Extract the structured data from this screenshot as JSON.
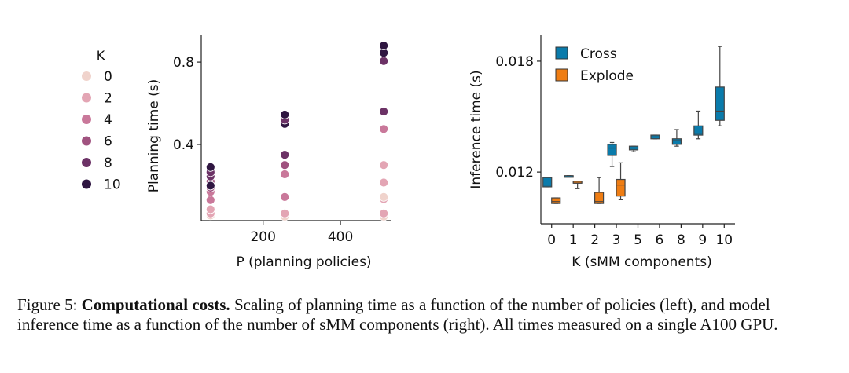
{
  "caption": {
    "label": "Figure 5:",
    "bold": "Computational costs.",
    "text": "Scaling of planning time as a function of the number of policies (left), and model inference time as a function of the number of sMM components (right). All times measured on a single A100 GPU."
  },
  "chart_data": [
    {
      "type": "scatter",
      "xlabel": "P (planning policies)",
      "ylabel": "Planning time (s)",
      "xlim": [
        40,
        530
      ],
      "ylim": [
        0.03,
        0.93
      ],
      "xticks": [
        200,
        400
      ],
      "xtick_labels": [
        "200",
        "400"
      ],
      "yticks": [
        0.4,
        0.8
      ],
      "ytick_labels": [
        "0.4",
        "0.8"
      ],
      "legend": {
        "title": "K",
        "placement": "left",
        "entries": [
          {
            "label": "0",
            "color": "#f0d3cc"
          },
          {
            "label": "2",
            "color": "#e3a5b4"
          },
          {
            "label": "4",
            "color": "#c9789a"
          },
          {
            "label": "6",
            "color": "#a0527f"
          },
          {
            "label": "8",
            "color": "#6c3266"
          },
          {
            "label": "10",
            "color": "#2f1641"
          }
        ]
      },
      "points": [
        {
          "x": 64,
          "y": 0.055,
          "k": 0
        },
        {
          "x": 64,
          "y": 0.065,
          "k": 1
        },
        {
          "x": 64,
          "y": 0.085,
          "k": 2
        },
        {
          "x": 64,
          "y": 0.13,
          "k": 3
        },
        {
          "x": 64,
          "y": 0.17,
          "k": 4
        },
        {
          "x": 64,
          "y": 0.19,
          "k": 5
        },
        {
          "x": 64,
          "y": 0.22,
          "k": 6
        },
        {
          "x": 64,
          "y": 0.245,
          "k": 7
        },
        {
          "x": 64,
          "y": 0.265,
          "k": 8
        },
        {
          "x": 64,
          "y": 0.2,
          "k": 9
        },
        {
          "x": 64,
          "y": 0.29,
          "k": 10
        },
        {
          "x": 256,
          "y": 0.05,
          "k": 0
        },
        {
          "x": 256,
          "y": 0.065,
          "k": 1
        },
        {
          "x": 256,
          "y": 0.145,
          "k": 3
        },
        {
          "x": 256,
          "y": 0.255,
          "k": 4
        },
        {
          "x": 256,
          "y": 0.3,
          "k": 5
        },
        {
          "x": 256,
          "y": 0.35,
          "k": 8
        },
        {
          "x": 256,
          "y": 0.5,
          "k": 9
        },
        {
          "x": 256,
          "y": 0.52,
          "k": 7
        },
        {
          "x": 256,
          "y": 0.545,
          "k": 10
        },
        {
          "x": 512,
          "y": 0.05,
          "k": 0
        },
        {
          "x": 512,
          "y": 0.065,
          "k": 1
        },
        {
          "x": 512,
          "y": 0.135,
          "k": 1
        },
        {
          "x": 512,
          "y": 0.145,
          "k": 0
        },
        {
          "x": 512,
          "y": 0.215,
          "k": 2
        },
        {
          "x": 512,
          "y": 0.3,
          "k": 2
        },
        {
          "x": 512,
          "y": 0.475,
          "k": 4
        },
        {
          "x": 512,
          "y": 0.56,
          "k": 8
        },
        {
          "x": 512,
          "y": 0.805,
          "k": 8
        },
        {
          "x": 512,
          "y": 0.845,
          "k": 9
        },
        {
          "x": 512,
          "y": 0.88,
          "k": 10
        }
      ]
    },
    {
      "type": "box",
      "xlabel": "K (sMM components)",
      "ylabel": "Inference time (s)",
      "ylim": [
        0.0092,
        0.0194
      ],
      "yticks": [
        0.012,
        0.018
      ],
      "ytick_labels": [
        "0.012",
        "0.018"
      ],
      "categories": [
        "0",
        "1",
        "2",
        "3",
        "5",
        "6",
        "8",
        "9",
        "10"
      ],
      "legend": {
        "placement": "top-left",
        "entries": [
          {
            "label": "Cross",
            "color": "#0a7bab"
          },
          {
            "label": "Explode",
            "color": "#ef7d13"
          }
        ]
      },
      "series": [
        {
          "name": "Cross",
          "color": "#0a7bab",
          "boxes": [
            {
              "cat": "0",
              "min": 0.0112,
              "q1": 0.0112,
              "med": 0.0113,
              "q3": 0.0117,
              "max": 0.0117
            },
            {
              "cat": "1",
              "min": 0.0118,
              "q1": 0.0118,
              "med": 0.0118,
              "q3": 0.0118,
              "max": 0.0118
            },
            {
              "cat": "3",
              "min": 0.0123,
              "q1": 0.0129,
              "med": 0.0133,
              "q3": 0.0135,
              "max": 0.0136
            },
            {
              "cat": "5",
              "min": 0.0131,
              "q1": 0.0132,
              "med": 0.0133,
              "q3": 0.0134,
              "max": 0.0134
            },
            {
              "cat": "6",
              "min": 0.0138,
              "q1": 0.0138,
              "med": 0.0139,
              "q3": 0.014,
              "max": 0.014
            },
            {
              "cat": "8",
              "min": 0.0134,
              "q1": 0.0135,
              "med": 0.0137,
              "q3": 0.0138,
              "max": 0.0143
            },
            {
              "cat": "9",
              "min": 0.0138,
              "q1": 0.014,
              "med": 0.0141,
              "q3": 0.0145,
              "max": 0.0153
            },
            {
              "cat": "10",
              "min": 0.0145,
              "q1": 0.0148,
              "med": 0.0153,
              "q3": 0.0166,
              "max": 0.0188
            }
          ]
        },
        {
          "name": "Explode",
          "color": "#ef7d13",
          "boxes": [
            {
              "cat": "0",
              "min": 0.0103,
              "q1": 0.0103,
              "med": 0.0104,
              "q3": 0.0106,
              "max": 0.0106
            },
            {
              "cat": "1",
              "min": 0.0111,
              "q1": 0.0114,
              "med": 0.0114,
              "q3": 0.0115,
              "max": 0.0115
            },
            {
              "cat": "2",
              "min": 0.0103,
              "q1": 0.0103,
              "med": 0.0104,
              "q3": 0.0109,
              "max": 0.0117
            },
            {
              "cat": "3",
              "min": 0.0105,
              "q1": 0.0107,
              "med": 0.0113,
              "q3": 0.0116,
              "max": 0.0125
            }
          ]
        }
      ]
    }
  ]
}
